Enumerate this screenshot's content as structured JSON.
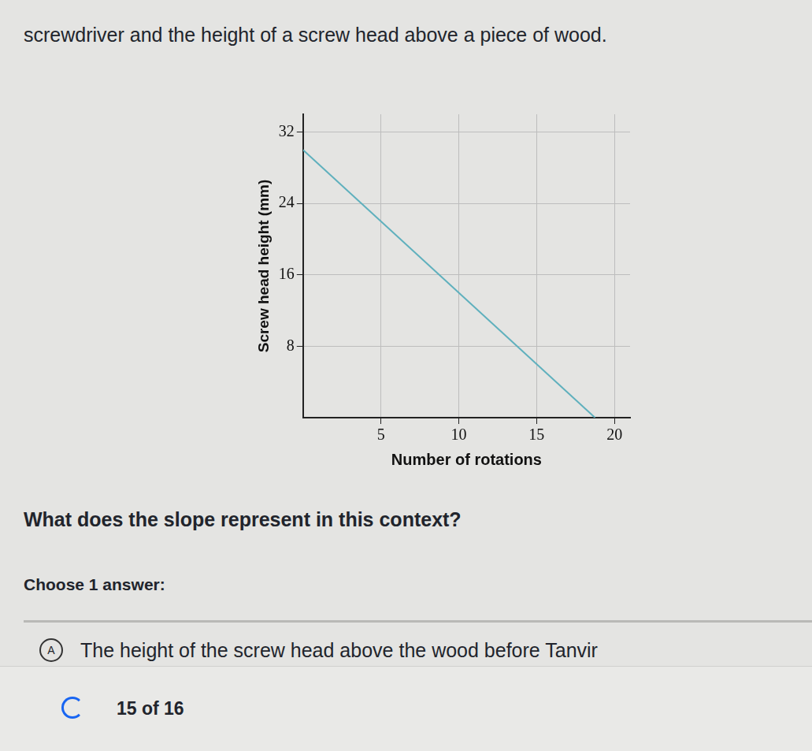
{
  "header": "screwdriver and the height of a screw head above a piece of wood.",
  "chart_data": {
    "type": "line",
    "x_label": "Number of rotations",
    "y_label": "Screw head height (mm)",
    "x": [
      0,
      18.75
    ],
    "values": [
      30,
      0
    ],
    "color": "#5fb0bd",
    "xlim": [
      0,
      21
    ],
    "xticks": [
      5,
      10,
      15,
      20
    ],
    "ylim": [
      0,
      34
    ],
    "yticks": [
      8,
      16,
      24,
      32
    ],
    "grid": true
  },
  "question": "What does the slope represent in this context?",
  "instruction": "Choose 1 answer:",
  "options": [
    {
      "letter": "A",
      "text": "The height of the screw head above the wood before Tanvir"
    }
  ],
  "progress": "15 of 16"
}
